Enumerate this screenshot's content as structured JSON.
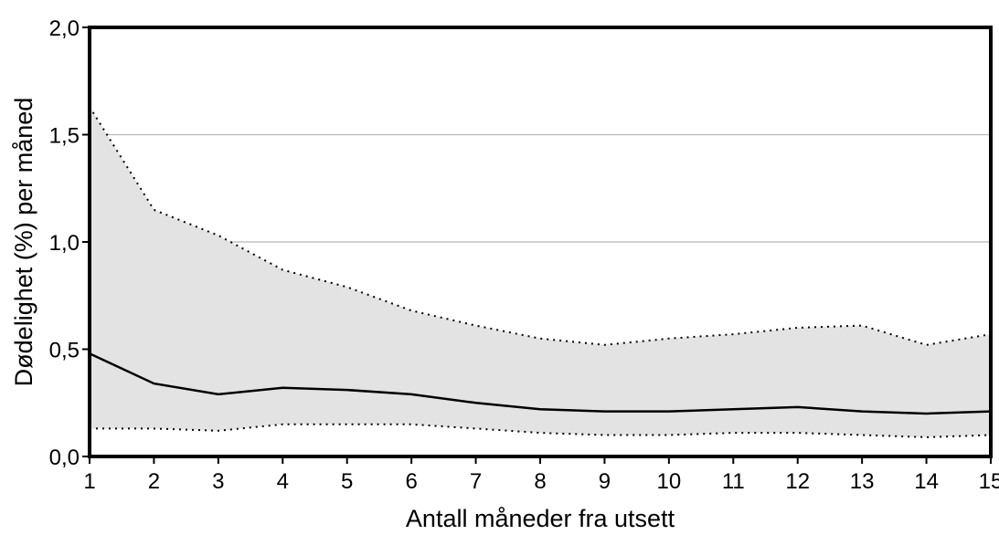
{
  "chart_data": {
    "type": "area",
    "xlabel": "Antall måneder fra utsett",
    "ylabel": "Dødelighet (%) per måned",
    "x": [
      1,
      2,
      3,
      4,
      5,
      6,
      7,
      8,
      9,
      10,
      11,
      12,
      13,
      14,
      15
    ],
    "xlim": [
      1,
      15
    ],
    "ylim": [
      0,
      2.0
    ],
    "y_ticks": [
      0,
      0.5,
      1.0,
      1.5,
      2.0
    ],
    "y_tick_labels": [
      "0,0",
      "0,5",
      "1,0",
      "1,5",
      "2,0"
    ],
    "x_tick_labels": [
      "1",
      "2",
      "3",
      "4",
      "5",
      "6",
      "7",
      "8",
      "9",
      "10",
      "11",
      "12",
      "13",
      "14",
      "15"
    ],
    "grid": "horizontal",
    "series": [
      {
        "style": "solid",
        "values": [
          0.48,
          0.34,
          0.29,
          0.32,
          0.31,
          0.29,
          0.25,
          0.22,
          0.21,
          0.21,
          0.22,
          0.23,
          0.21,
          0.2,
          0.21
        ]
      },
      {
        "style": "dotted-upper",
        "values": [
          1.63,
          1.15,
          1.03,
          0.87,
          0.79,
          0.68,
          0.61,
          0.55,
          0.52,
          0.55,
          0.57,
          0.6,
          0.61,
          0.52,
          0.57
        ]
      },
      {
        "style": "dotted-lower",
        "values": [
          0.13,
          0.13,
          0.12,
          0.15,
          0.15,
          0.15,
          0.13,
          0.11,
          0.1,
          0.1,
          0.11,
          0.11,
          0.1,
          0.09,
          0.1
        ]
      }
    ],
    "colors": {
      "band": "#e3e3e3",
      "line": "#000000",
      "grid": "#b8b8b8"
    }
  }
}
